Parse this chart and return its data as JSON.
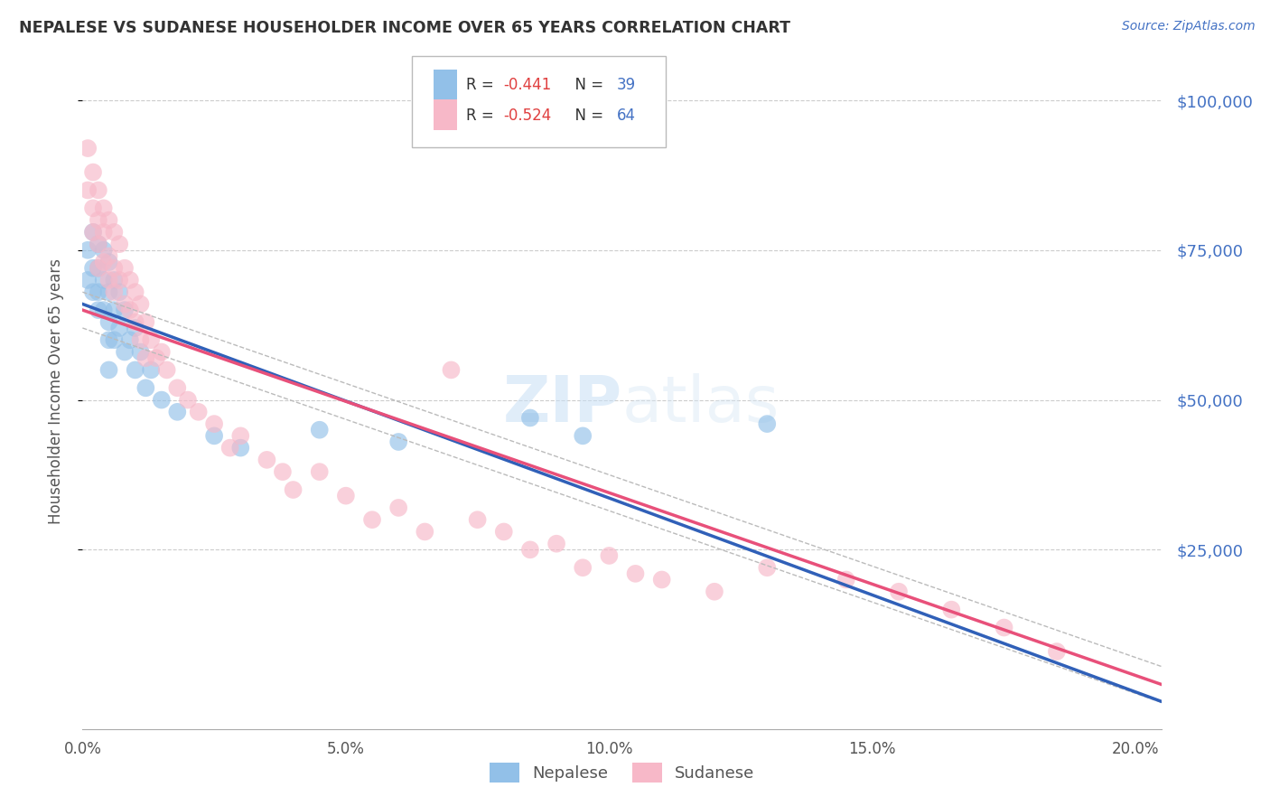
{
  "title": "NEPALESE VS SUDANESE HOUSEHOLDER INCOME OVER 65 YEARS CORRELATION CHART",
  "source": "Source: ZipAtlas.com",
  "ylabel": "Householder Income Over 65 years",
  "xlabel_ticks": [
    "0.0%",
    "5.0%",
    "10.0%",
    "15.0%",
    "20.0%"
  ],
  "xlabel_vals": [
    0.0,
    0.05,
    0.1,
    0.15,
    0.2
  ],
  "ytick_labels": [
    "$100,000",
    "$75,000",
    "$50,000",
    "$25,000"
  ],
  "ytick_vals": [
    100000,
    75000,
    50000,
    25000
  ],
  "xlim": [
    0.0,
    0.205
  ],
  "ylim": [
    -5000,
    108000
  ],
  "nepalese_color": "#92c0e8",
  "sudanese_color": "#f7b8c8",
  "nepalese_line_color": "#3060b8",
  "sudanese_line_color": "#e8507a",
  "R_nepalese": -0.441,
  "N_nepalese": 39,
  "R_sudanese": -0.524,
  "N_sudanese": 64,
  "background_color": "#ffffff",
  "grid_color": "#cccccc",
  "nepalese_x": [
    0.001,
    0.001,
    0.002,
    0.002,
    0.002,
    0.003,
    0.003,
    0.003,
    0.003,
    0.004,
    0.004,
    0.004,
    0.005,
    0.005,
    0.005,
    0.005,
    0.005,
    0.006,
    0.006,
    0.006,
    0.007,
    0.007,
    0.008,
    0.008,
    0.009,
    0.01,
    0.01,
    0.011,
    0.012,
    0.013,
    0.015,
    0.018,
    0.025,
    0.03,
    0.045,
    0.06,
    0.085,
    0.095,
    0.13
  ],
  "nepalese_y": [
    75000,
    70000,
    78000,
    72000,
    68000,
    76000,
    72000,
    68000,
    65000,
    75000,
    70000,
    65000,
    73000,
    68000,
    63000,
    60000,
    55000,
    70000,
    65000,
    60000,
    68000,
    62000,
    65000,
    58000,
    60000,
    62000,
    55000,
    58000,
    52000,
    55000,
    50000,
    48000,
    44000,
    42000,
    45000,
    43000,
    47000,
    44000,
    46000
  ],
  "sudanese_x": [
    0.001,
    0.001,
    0.002,
    0.002,
    0.002,
    0.003,
    0.003,
    0.003,
    0.003,
    0.004,
    0.004,
    0.004,
    0.005,
    0.005,
    0.005,
    0.006,
    0.006,
    0.006,
    0.007,
    0.007,
    0.008,
    0.008,
    0.009,
    0.009,
    0.01,
    0.01,
    0.011,
    0.011,
    0.012,
    0.012,
    0.013,
    0.014,
    0.015,
    0.016,
    0.018,
    0.02,
    0.022,
    0.025,
    0.028,
    0.03,
    0.035,
    0.038,
    0.04,
    0.045,
    0.05,
    0.055,
    0.06,
    0.065,
    0.07,
    0.075,
    0.08,
    0.085,
    0.09,
    0.095,
    0.1,
    0.105,
    0.11,
    0.12,
    0.13,
    0.145,
    0.155,
    0.165,
    0.175,
    0.185
  ],
  "sudanese_y": [
    92000,
    85000,
    88000,
    82000,
    78000,
    85000,
    80000,
    76000,
    72000,
    82000,
    78000,
    73000,
    80000,
    74000,
    70000,
    78000,
    72000,
    68000,
    76000,
    70000,
    72000,
    66000,
    70000,
    65000,
    68000,
    63000,
    66000,
    60000,
    63000,
    57000,
    60000,
    57000,
    58000,
    55000,
    52000,
    50000,
    48000,
    46000,
    42000,
    44000,
    40000,
    38000,
    35000,
    38000,
    34000,
    30000,
    32000,
    28000,
    55000,
    30000,
    28000,
    25000,
    26000,
    22000,
    24000,
    21000,
    20000,
    18000,
    22000,
    20000,
    18000,
    15000,
    12000,
    8000
  ]
}
